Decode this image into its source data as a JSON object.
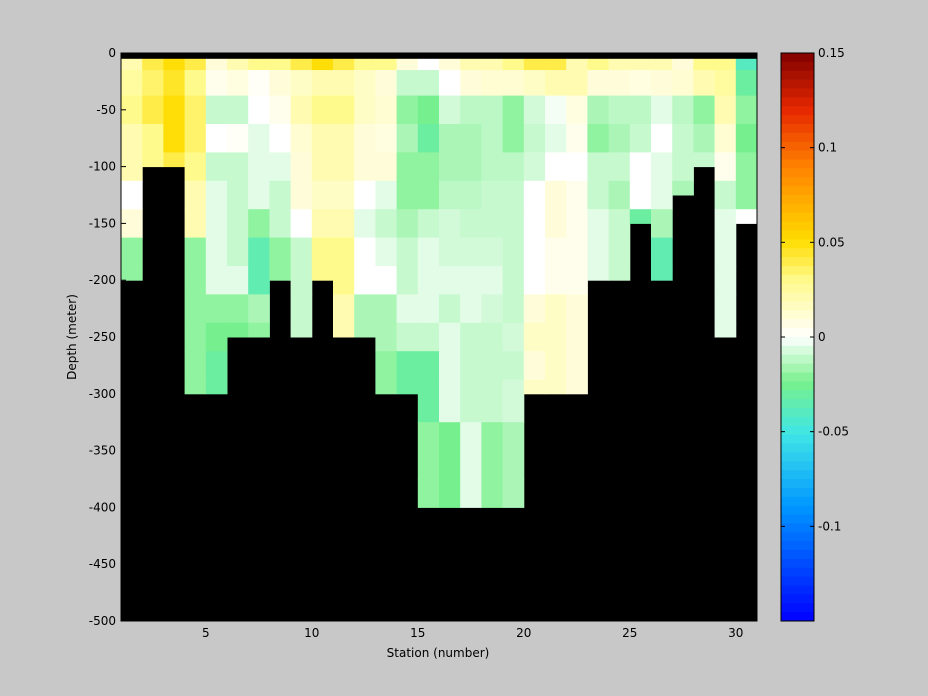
{
  "chart_data": {
    "type": "heatmap",
    "title": "",
    "xlabel": "Station (number)",
    "ylabel": "Depth (meter)",
    "xlim": [
      1,
      31
    ],
    "ylim": [
      -500,
      0
    ],
    "x_ticks": [
      5,
      10,
      15,
      20,
      25,
      30
    ],
    "y_ticks": [
      0,
      -50,
      -100,
      -150,
      -200,
      -250,
      -300,
      -350,
      -400,
      -450,
      -500
    ],
    "colorbar": {
      "colormap": "jet-with-white-center",
      "range": [
        -0.15,
        0.15
      ],
      "ticks": [
        0.15,
        0.1,
        0.05,
        0,
        -0.05,
        -0.1
      ],
      "tick_labels": [
        "0.15",
        "0.1",
        "0.05",
        "0",
        "-0.05",
        "-0.1"
      ]
    },
    "land_color": "#000000",
    "background_color": "#c8c8c8",
    "stations": [
      1,
      2,
      3,
      4,
      5,
      6,
      7,
      8,
      9,
      10,
      11,
      12,
      13,
      14,
      15,
      16,
      17,
      18,
      19,
      20,
      21,
      22,
      23,
      24,
      25,
      26,
      27,
      28,
      29,
      30
    ],
    "depth_levels": [
      -5,
      -50,
      -100,
      -150,
      -200,
      -250,
      -300,
      -350,
      -400
    ],
    "station_bottom_depth": [
      -200,
      -100,
      -100,
      -300,
      -300,
      -250,
      -250,
      -200,
      -250,
      -200,
      -250,
      -250,
      -300,
      -300,
      -400,
      -400,
      -400,
      -400,
      -400,
      -300,
      -300,
      -300,
      -200,
      -200,
      -150,
      -200,
      -125,
      -100,
      -250,
      -150
    ],
    "values": [
      [
        0.02,
        0.04,
        0.05,
        0.04,
        0.01,
        0.02,
        0.03,
        0.03,
        0.04,
        0.05,
        0.04,
        0.03,
        0.03,
        0.01,
        0.0,
        0.01,
        0.02,
        0.02,
        0.03,
        0.04,
        0.04,
        0.02,
        0.03,
        0.02,
        0.02,
        0.02,
        0.01,
        0.03,
        0.03,
        -0.04
      ],
      [
        0.025,
        0.035,
        0.045,
        0.03,
        0.005,
        0.008,
        0.002,
        0.01,
        0.015,
        0.02,
        0.02,
        0.015,
        0.01,
        -0.01,
        -0.01,
        0.0,
        0.01,
        0.012,
        0.012,
        0.015,
        0.02,
        0.02,
        0.01,
        0.01,
        0.008,
        0.01,
        0.012,
        0.02,
        0.025,
        -0.03
      ],
      [
        0.03,
        0.04,
        0.05,
        0.035,
        -0.01,
        -0.01,
        0.0,
        0.005,
        0.02,
        0.03,
        0.03,
        0.015,
        0.012,
        -0.02,
        -0.025,
        -0.008,
        -0.012,
        -0.012,
        -0.02,
        -0.008,
        -0.002,
        0.008,
        -0.015,
        -0.012,
        -0.012,
        -0.005,
        -0.012,
        -0.02,
        0.02,
        -0.02
      ],
      [
        0.02,
        0.03,
        0.05,
        0.035,
        0.0,
        0.002,
        -0.005,
        0.0,
        0.012,
        0.02,
        0.02,
        0.01,
        0.008,
        -0.015,
        -0.03,
        -0.015,
        -0.015,
        -0.012,
        -0.02,
        -0.01,
        -0.005,
        0.005,
        -0.02,
        -0.015,
        -0.01,
        0.0,
        -0.01,
        -0.015,
        0.012,
        -0.025
      ],
      [
        0.02,
        0.03,
        0.04,
        0.03,
        -0.01,
        -0.01,
        -0.005,
        -0.005,
        0.01,
        0.02,
        0.02,
        0.01,
        0.01,
        -0.02,
        -0.02,
        -0.015,
        -0.015,
        -0.012,
        -0.012,
        -0.008,
        0.0,
        0.0,
        -0.01,
        -0.01,
        0.0,
        -0.005,
        -0.01,
        -0.01,
        0.005,
        -0.02
      ],
      [
        0.0,
        0.02,
        0.03,
        0.02,
        -0.005,
        -0.01,
        -0.005,
        -0.01,
        0.01,
        0.015,
        0.015,
        0.0,
        -0.005,
        -0.02,
        -0.02,
        -0.012,
        -0.012,
        -0.01,
        -0.01,
        0.0,
        0.01,
        0.005,
        -0.01,
        -0.015,
        0.0,
        -0.005,
        -0.015,
        -0.03,
        -0.01,
        -0.02
      ],
      [
        0.01,
        0.015,
        0.02,
        0.02,
        -0.005,
        -0.01,
        -0.02,
        -0.01,
        0.0,
        0.02,
        0.02,
        -0.005,
        -0.01,
        -0.015,
        -0.01,
        -0.008,
        -0.01,
        -0.01,
        -0.01,
        0.0,
        0.01,
        0.005,
        -0.005,
        -0.01,
        -0.03,
        -0.015,
        -0.02,
        -0.01,
        -0.005,
        0.0
      ],
      [
        -0.02,
        -0.02,
        -0.02,
        -0.02,
        -0.005,
        -0.01,
        -0.035,
        -0.02,
        -0.01,
        0.03,
        0.03,
        0.0,
        -0.005,
        -0.01,
        -0.005,
        -0.008,
        -0.008,
        -0.008,
        -0.01,
        0.0,
        0.005,
        0.005,
        -0.005,
        -0.01,
        -0.03,
        -0.035,
        -0.02,
        -0.01,
        -0.005,
        0.0
      ],
      [
        -0.02,
        -0.02,
        -0.02,
        -0.02,
        -0.005,
        -0.005,
        -0.035,
        -0.02,
        -0.01,
        0.03,
        0.03,
        0.0,
        0.0,
        -0.01,
        -0.005,
        -0.005,
        -0.005,
        -0.005,
        -0.01,
        0.0,
        0.005,
        0.005,
        -0.005,
        -0.01,
        -0.02,
        -0.035,
        -0.02,
        -0.01,
        -0.005,
        0.0
      ],
      [
        -0.02,
        -0.02,
        -0.02,
        -0.02,
        -0.02,
        -0.02,
        -0.015,
        -0.008,
        -0.01,
        0.04,
        0.02,
        -0.015,
        -0.015,
        -0.005,
        -0.005,
        -0.01,
        -0.005,
        -0.008,
        -0.01,
        0.01,
        0.015,
        0.01,
        -0.01,
        -0.01,
        -0.02,
        -0.02,
        -0.02,
        -0.01,
        -0.005,
        0.0
      ],
      [
        -0.02,
        -0.02,
        -0.02,
        -0.02,
        -0.025,
        -0.025,
        -0.02,
        -0.008,
        -0.01,
        0.04,
        0.02,
        -0.015,
        -0.015,
        -0.01,
        -0.01,
        -0.005,
        -0.01,
        -0.01,
        -0.008,
        0.015,
        0.015,
        0.01,
        -0.015,
        -0.01,
        -0.02,
        -0.02,
        -0.02,
        -0.01,
        -0.005,
        0.0
      ],
      [
        -0.02,
        -0.02,
        -0.02,
        -0.02,
        -0.03,
        -0.03,
        -0.02,
        -0.02,
        -0.02,
        -0.02,
        -0.02,
        -0.02,
        -0.02,
        -0.03,
        -0.03,
        -0.005,
        -0.01,
        -0.01,
        -0.01,
        0.01,
        0.015,
        0.01,
        -0.02,
        -0.02,
        -0.02,
        -0.02,
        -0.02,
        -0.01,
        -0.005,
        0.0
      ],
      [
        -0.02,
        -0.02,
        -0.02,
        -0.02,
        -0.03,
        -0.03,
        -0.02,
        -0.02,
        -0.02,
        -0.02,
        -0.02,
        -0.02,
        -0.02,
        -0.03,
        -0.03,
        -0.005,
        -0.01,
        -0.01,
        -0.008,
        0.015,
        0.015,
        0.01,
        -0.02,
        -0.02,
        -0.02,
        -0.02,
        -0.02,
        -0.01,
        -0.005,
        0.0
      ],
      [
        -0.02,
        -0.02,
        -0.02,
        -0.02,
        -0.02,
        -0.02,
        -0.02,
        -0.02,
        -0.02,
        -0.02,
        -0.02,
        -0.02,
        -0.02,
        -0.02,
        -0.02,
        -0.025,
        -0.005,
        -0.02,
        -0.015,
        0.01,
        0.01,
        0.01,
        -0.02,
        -0.02,
        -0.02,
        -0.02,
        -0.02,
        -0.01,
        -0.005,
        0.0
      ],
      [
        -0.02,
        -0.02,
        -0.02,
        -0.02,
        -0.02,
        -0.02,
        -0.02,
        -0.02,
        -0.02,
        -0.02,
        -0.02,
        -0.02,
        -0.02,
        -0.02,
        -0.02,
        -0.025,
        -0.005,
        -0.02,
        -0.015,
        0.01,
        0.01,
        0.01,
        -0.02,
        -0.02,
        -0.02,
        -0.02,
        -0.02,
        -0.01,
        -0.005,
        0.0
      ]
    ],
    "value_row_depths_m": [
      -5,
      -25,
      -50,
      -75,
      -100,
      -125,
      -150,
      -175,
      -200,
      -225,
      -250,
      -275,
      -300,
      -350,
      -400
    ]
  }
}
